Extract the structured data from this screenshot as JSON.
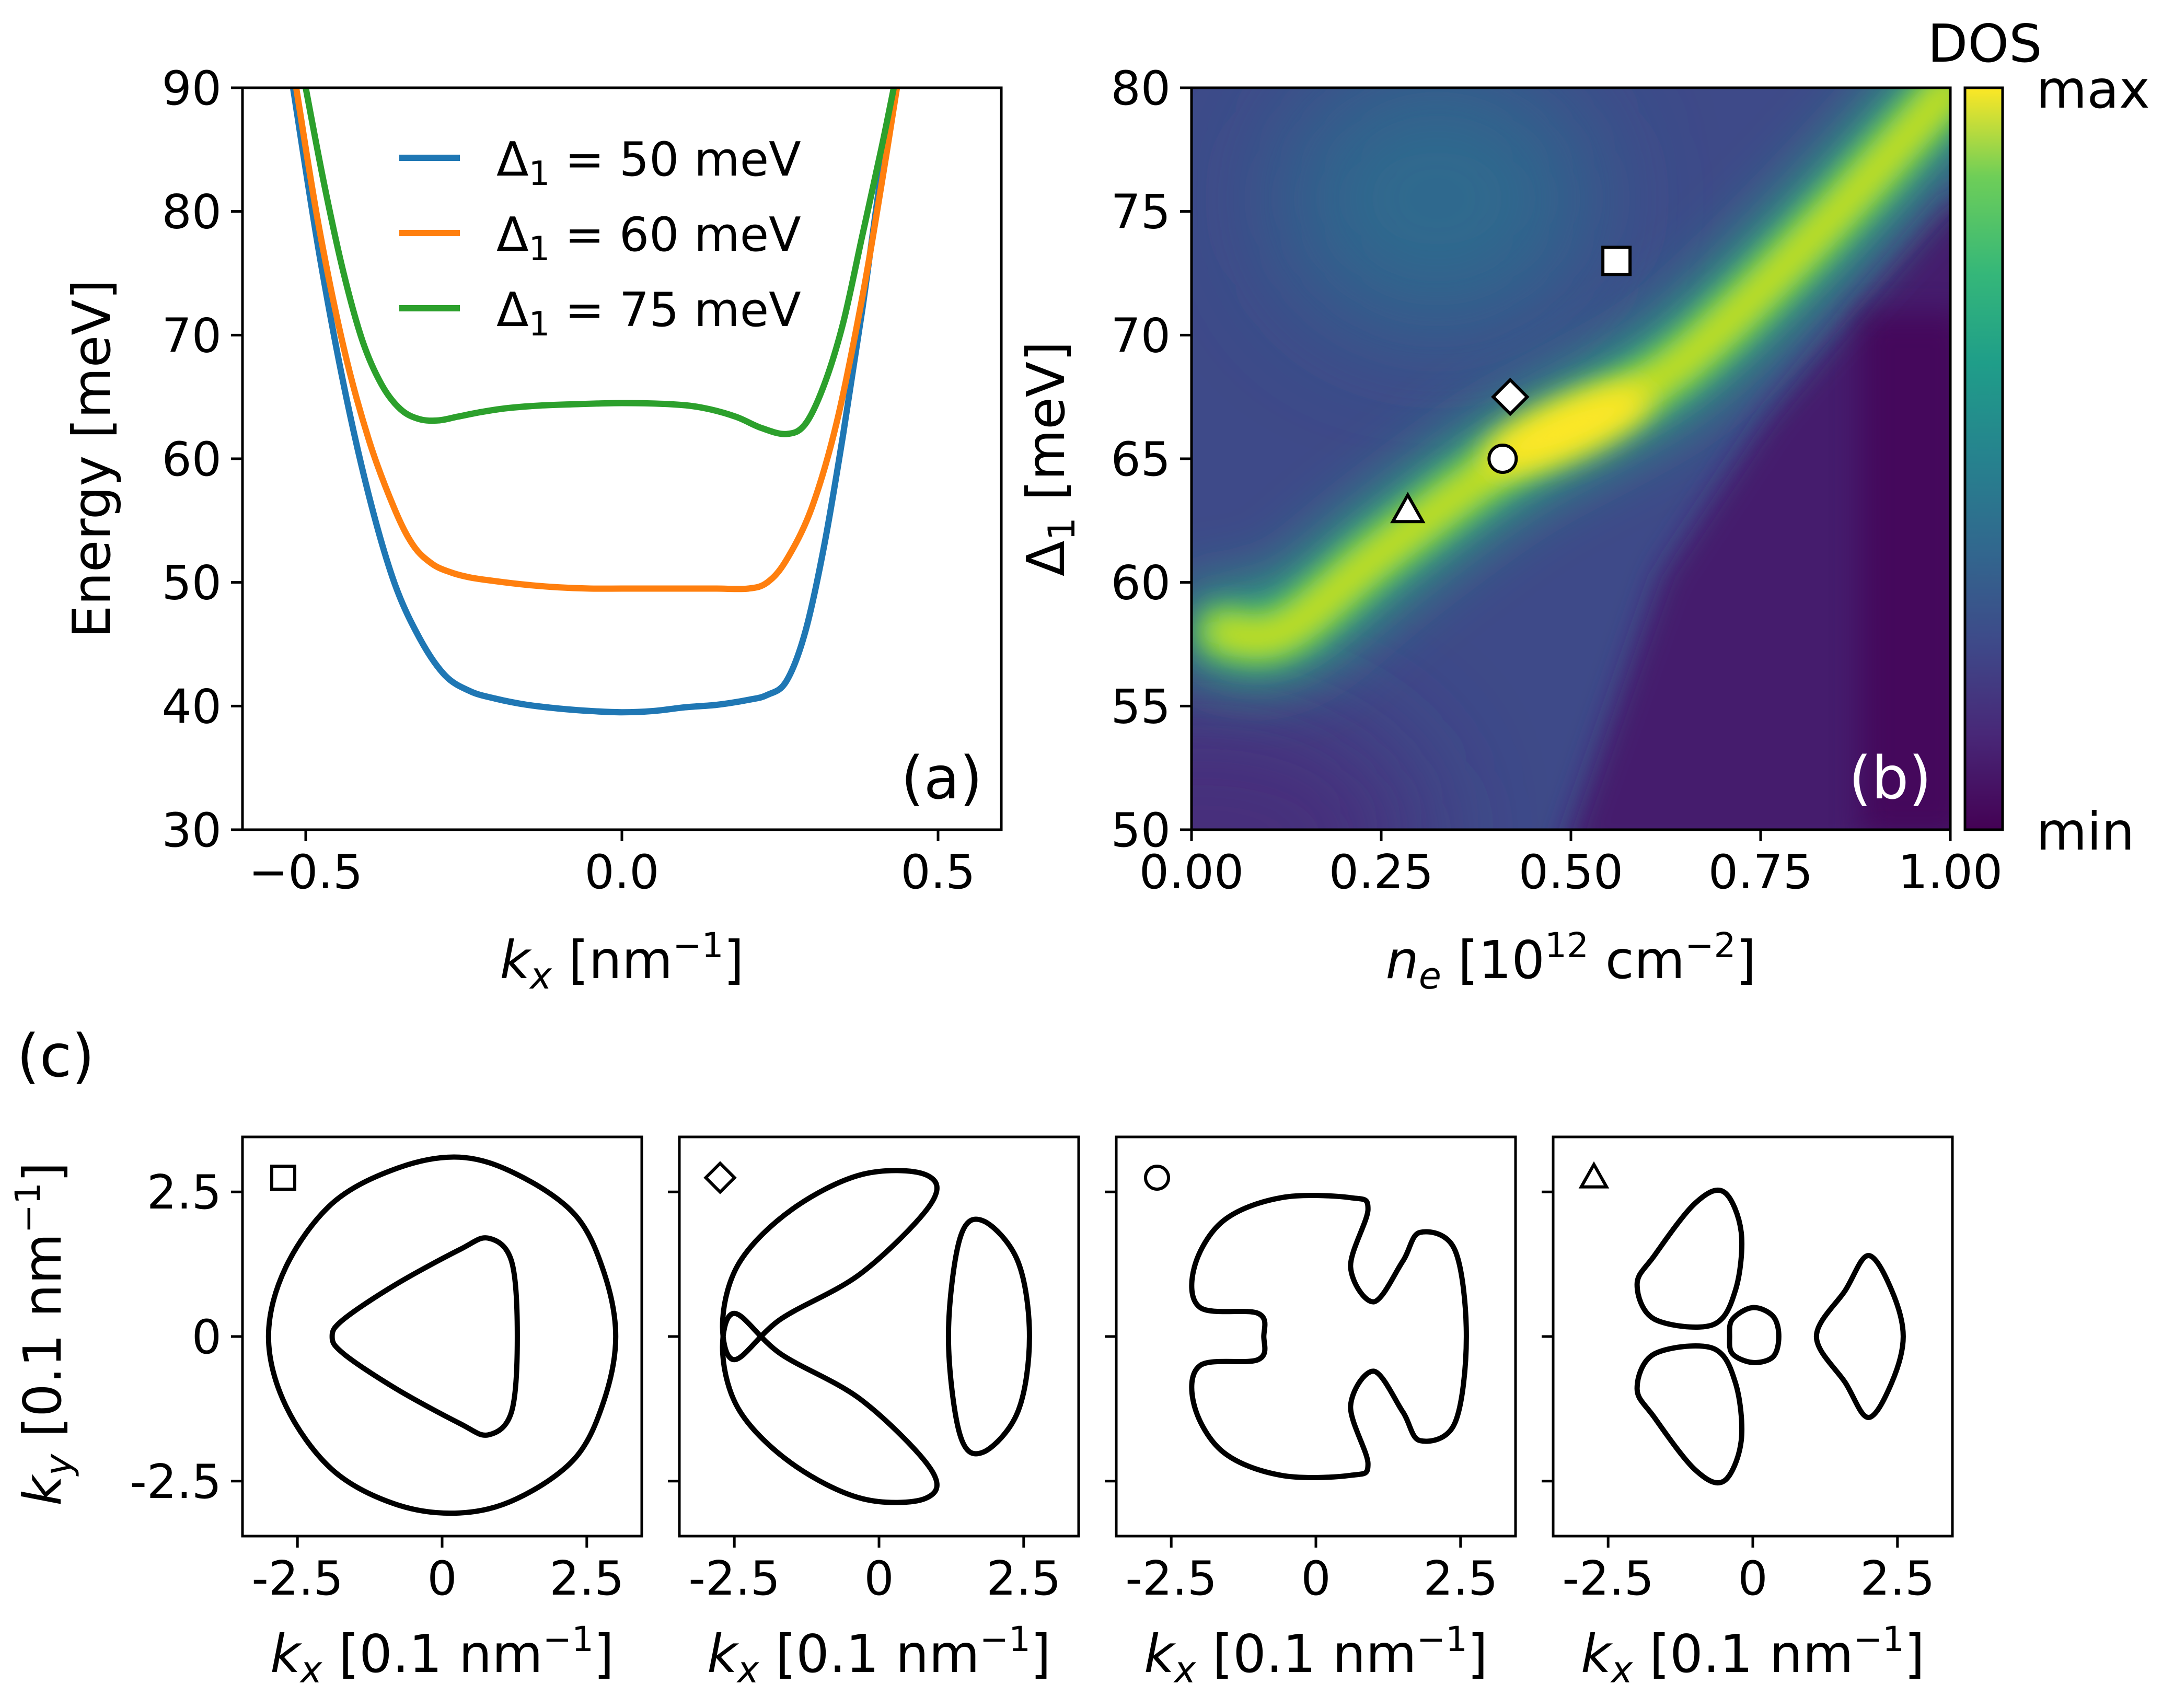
{
  "chart_data": [
    {
      "panel": "(a)",
      "type": "line",
      "xlabel_var": "k",
      "xlabel_sub": "x",
      "xlabel_rest": " [nm",
      "xlabel_sup": "−1",
      "xlabel_end": "]",
      "ylabel": "Energy [meV]",
      "xlim": [
        -0.6,
        0.6
      ],
      "ylim": [
        30,
        90
      ],
      "xticks": [
        "−0.5",
        "0.0",
        "0.5"
      ],
      "xtick_values": [
        -0.5,
        0.0,
        0.5
      ],
      "yticks": [
        "30",
        "40",
        "50",
        "60",
        "70",
        "80",
        "90"
      ],
      "ytick_values": [
        30,
        40,
        50,
        60,
        70,
        80,
        90
      ],
      "legend_position": "upper-right",
      "series": [
        {
          "name": "Δ1 = 50 meV",
          "name_var": "Δ",
          "name_sub": "1",
          "name_rest": " = 50 meV",
          "color": "#1f77b4",
          "x": [
            -0.52,
            -0.48,
            -0.44,
            -0.4,
            -0.36,
            -0.32,
            -0.28,
            -0.24,
            -0.2,
            -0.15,
            -0.1,
            -0.05,
            0.0,
            0.05,
            0.1,
            0.15,
            0.2,
            0.23,
            0.26,
            0.29,
            0.32,
            0.35,
            0.38,
            0.41,
            0.435
          ],
          "y": [
            90,
            77,
            66,
            57,
            50,
            45.5,
            42.5,
            41.2,
            40.6,
            40.1,
            39.8,
            39.6,
            39.5,
            39.6,
            39.9,
            40.1,
            40.5,
            40.9,
            42,
            46,
            53,
            62,
            72,
            83,
            90
          ]
        },
        {
          "name": "Δ1 = 60 meV",
          "name_var": "Δ",
          "name_sub": "1",
          "name_rest": " = 60 meV",
          "color": "#ff7f0e",
          "x": [
            -0.515,
            -0.48,
            -0.44,
            -0.4,
            -0.36,
            -0.33,
            -0.3,
            -0.27,
            -0.24,
            -0.2,
            -0.15,
            -0.1,
            -0.05,
            0.0,
            0.05,
            0.1,
            0.15,
            0.2,
            0.23,
            0.26,
            0.3,
            0.34,
            0.38,
            0.41,
            0.435
          ],
          "y": [
            90,
            79,
            69,
            61.5,
            56,
            53,
            51.5,
            50.8,
            50.4,
            50.1,
            49.8,
            49.6,
            49.5,
            49.5,
            49.5,
            49.5,
            49.5,
            49.5,
            50,
            51.8,
            56,
            63,
            73,
            82,
            90
          ]
        },
        {
          "name": "Δ1 = 75 meV",
          "name_var": "Δ",
          "name_sub": "1",
          "name_rest": " = 75 meV",
          "color": "#2ca02c",
          "x": [
            -0.5,
            -0.47,
            -0.44,
            -0.41,
            -0.38,
            -0.35,
            -0.32,
            -0.29,
            -0.26,
            -0.22,
            -0.18,
            -0.13,
            -0.08,
            0.0,
            0.08,
            0.13,
            0.18,
            0.22,
            0.26,
            0.29,
            0.32,
            0.35,
            0.38,
            0.41,
            0.43
          ],
          "y": [
            90,
            82,
            75,
            69.5,
            66,
            64,
            63.2,
            63.1,
            63.4,
            63.8,
            64.1,
            64.3,
            64.4,
            64.5,
            64.4,
            64.1,
            63.4,
            62.5,
            62,
            62.8,
            66,
            71,
            78,
            85,
            90
          ]
        }
      ]
    },
    {
      "panel": "(b)",
      "type": "heatmap",
      "xlabel_var": "n",
      "xlabel_sub": "e",
      "xlabel_rest": " [10",
      "xlabel_sup": "12",
      "xlabel_mid": " cm",
      "xlabel_sup2": "−2",
      "xlabel_end": "]",
      "ylabel_var": "Δ",
      "ylabel_sub": "1",
      "ylabel_rest": " [meV]",
      "xlim": [
        0,
        1
      ],
      "ylim": [
        50,
        80
      ],
      "xticks": [
        "0.00",
        "0.25",
        "0.50",
        "0.75",
        "1.00"
      ],
      "xtick_values": [
        0,
        0.25,
        0.5,
        0.75,
        1.0
      ],
      "yticks": [
        "50",
        "55",
        "60",
        "65",
        "70",
        "75",
        "80"
      ],
      "ytick_values": [
        50,
        55,
        60,
        65,
        70,
        75,
        80
      ],
      "colormap": "viridis",
      "colorbar": {
        "title": "DOS",
        "max_label": "max",
        "min_label": "min"
      },
      "markers": [
        {
          "shape": "square",
          "x": 0.56,
          "y": 73.0
        },
        {
          "shape": "diamond",
          "x": 0.42,
          "y": 67.5
        },
        {
          "shape": "circle",
          "x": 0.41,
          "y": 65.0
        },
        {
          "shape": "triangle",
          "x": 0.285,
          "y": 62.9
        }
      ],
      "ridge_center": [
        [
          0.04,
          58.0
        ],
        [
          0.12,
          58.0
        ],
        [
          0.25,
          61.2
        ],
        [
          0.41,
          64.8
        ],
        [
          0.53,
          66.8
        ],
        [
          0.65,
          69.0
        ],
        [
          0.82,
          74.0
        ],
        [
          1.0,
          80.0
        ]
      ],
      "boundary": [
        [
          0.55,
          50
        ],
        [
          0.62,
          60
        ],
        [
          0.72,
          68
        ],
        [
          0.85,
          74
        ],
        [
          1.0,
          80
        ]
      ]
    },
    {
      "panel": "(c)",
      "type": "line",
      "description_subplots": 4,
      "xlabel_var": "k",
      "xlabel_sub": "x",
      "xlabel_rest": " [0.1 nm",
      "xlabel_sup": "−1",
      "xlabel_end": "]",
      "ylabel_var": "k",
      "ylabel_sub": "y",
      "ylabel_rest": " [0.1 nm",
      "ylabel_sup": "−1",
      "ylabel_end": "]",
      "xlim": [
        -3.45,
        3.45
      ],
      "ylim": [
        -3.45,
        3.45
      ],
      "xticks": [
        "-2.5",
        "0",
        "2.5"
      ],
      "xtick_values": [
        -2.5,
        0,
        2.5
      ],
      "yticks": [
        "2.5",
        "0",
        "-2.5"
      ],
      "ytick_values": [
        2.5,
        0,
        -2.5
      ],
      "subplots": [
        {
          "marker": "square",
          "contours": [
            [
              [
                0.3,
                3.1
              ],
              [
                1.3,
                2.8
              ],
              [
                2.3,
                2.1
              ],
              [
                2.8,
                1.1
              ],
              [
                3.0,
                0
              ],
              [
                2.8,
                -1.1
              ],
              [
                2.3,
                -2.1
              ],
              [
                1.3,
                -2.8
              ],
              [
                0.3,
                -3.05
              ],
              [
                -0.8,
                -2.9
              ],
              [
                -1.9,
                -2.3
              ],
              [
                -2.7,
                -1.2
              ],
              [
                -3.0,
                0
              ],
              [
                -2.7,
                1.2
              ],
              [
                -1.9,
                2.3
              ],
              [
                -0.8,
                2.9
              ]
            ],
            [
              [
                0.8,
                1.7
              ],
              [
                1.2,
                1.3
              ],
              [
                1.3,
                0
              ],
              [
                1.2,
                -1.3
              ],
              [
                0.8,
                -1.7
              ],
              [
                0.3,
                -1.5
              ],
              [
                -0.8,
                -0.9
              ],
              [
                -1.7,
                -0.3
              ],
              [
                -1.9,
                0
              ],
              [
                -1.7,
                0.3
              ],
              [
                -0.8,
                0.9
              ],
              [
                0.3,
                1.5
              ]
            ]
          ]
        },
        {
          "marker": "diamond",
          "contours": [
            [
              [
                -2.5,
                -0.4
              ],
              [
                -2.7,
                0.3
              ],
              [
                -2.4,
                1.3
              ],
              [
                -1.5,
                2.2
              ],
              [
                -0.3,
                2.8
              ],
              [
                0.8,
                2.8
              ],
              [
                0.9,
                2.3
              ],
              [
                -0.3,
                1.1
              ],
              [
                -1.7,
                0.3
              ]
            ],
            [
              [
                -2.5,
                0.4
              ],
              [
                -1.7,
                -0.3
              ],
              [
                -0.3,
                -1.1
              ],
              [
                0.9,
                -2.3
              ],
              [
                0.8,
                -2.8
              ],
              [
                -0.3,
                -2.8
              ],
              [
                -1.5,
                -2.2
              ],
              [
                -2.4,
                -1.3
              ],
              [
                -2.7,
                -0.3
              ]
            ],
            [
              [
                1.8,
                2.0
              ],
              [
                2.4,
                1.3
              ],
              [
                2.6,
                0
              ],
              [
                2.4,
                -1.3
              ],
              [
                1.8,
                -2.0
              ],
              [
                1.4,
                -1.7
              ],
              [
                1.2,
                0
              ],
              [
                1.4,
                1.7
              ]
            ]
          ]
        },
        {
          "marker": "circle",
          "contours": [
            [
              [
                0.6,
                2.4
              ],
              [
                0.9,
                2.2
              ],
              [
                0.6,
                1.2
              ],
              [
                1.0,
                0.6
              ],
              [
                1.5,
                1.3
              ],
              [
                1.8,
                1.8
              ],
              [
                2.4,
                1.5
              ],
              [
                2.6,
                0
              ],
              [
                2.4,
                -1.5
              ],
              [
                1.8,
                -1.8
              ],
              [
                1.5,
                -1.3
              ],
              [
                1.0,
                -0.6
              ],
              [
                0.6,
                -1.2
              ],
              [
                0.9,
                -2.2
              ],
              [
                0.6,
                -2.4
              ],
              [
                -0.6,
                -2.4
              ],
              [
                -1.6,
                -2.0
              ],
              [
                -2.1,
                -1.2
              ],
              [
                -2.0,
                -0.5
              ],
              [
                -1.0,
                -0.4
              ],
              [
                -0.9,
                0
              ],
              [
                -1.0,
                0.4
              ],
              [
                -2.0,
                0.5
              ],
              [
                -2.1,
                1.2
              ],
              [
                -1.6,
                2.0
              ],
              [
                -0.6,
                2.4
              ]
            ]
          ]
        },
        {
          "marker": "triangle",
          "contours": [
            [
              [
                -1.7,
                1.4
              ],
              [
                -2.0,
                0.9
              ],
              [
                -1.7,
                0.3
              ],
              [
                -0.7,
                0.2
              ],
              [
                -0.3,
                0.8
              ],
              [
                -0.2,
                1.8
              ],
              [
                -0.5,
                2.5
              ],
              [
                -1.0,
                2.3
              ]
            ],
            [
              [
                -1.7,
                -1.4
              ],
              [
                -2.0,
                -0.9
              ],
              [
                -1.7,
                -0.3
              ],
              [
                -0.7,
                -0.2
              ],
              [
                -0.3,
                -0.8
              ],
              [
                -0.2,
                -1.8
              ],
              [
                -0.5,
                -2.5
              ],
              [
                -1.0,
                -2.3
              ]
            ],
            [
              [
                0,
                0.5
              ],
              [
                0.35,
                0.35
              ],
              [
                0.45,
                0
              ],
              [
                0.35,
                -0.35
              ],
              [
                0,
                -0.45
              ],
              [
                -0.35,
                -0.3
              ],
              [
                -0.4,
                0
              ],
              [
                -0.35,
                0.3
              ]
            ],
            [
              [
                2.0,
                1.4
              ],
              [
                2.4,
                0.8
              ],
              [
                2.6,
                0
              ],
              [
                2.4,
                -0.8
              ],
              [
                2.0,
                -1.4
              ],
              [
                1.6,
                -0.8
              ],
              [
                1.1,
                0
              ],
              [
                1.6,
                0.8
              ]
            ]
          ]
        }
      ]
    }
  ]
}
